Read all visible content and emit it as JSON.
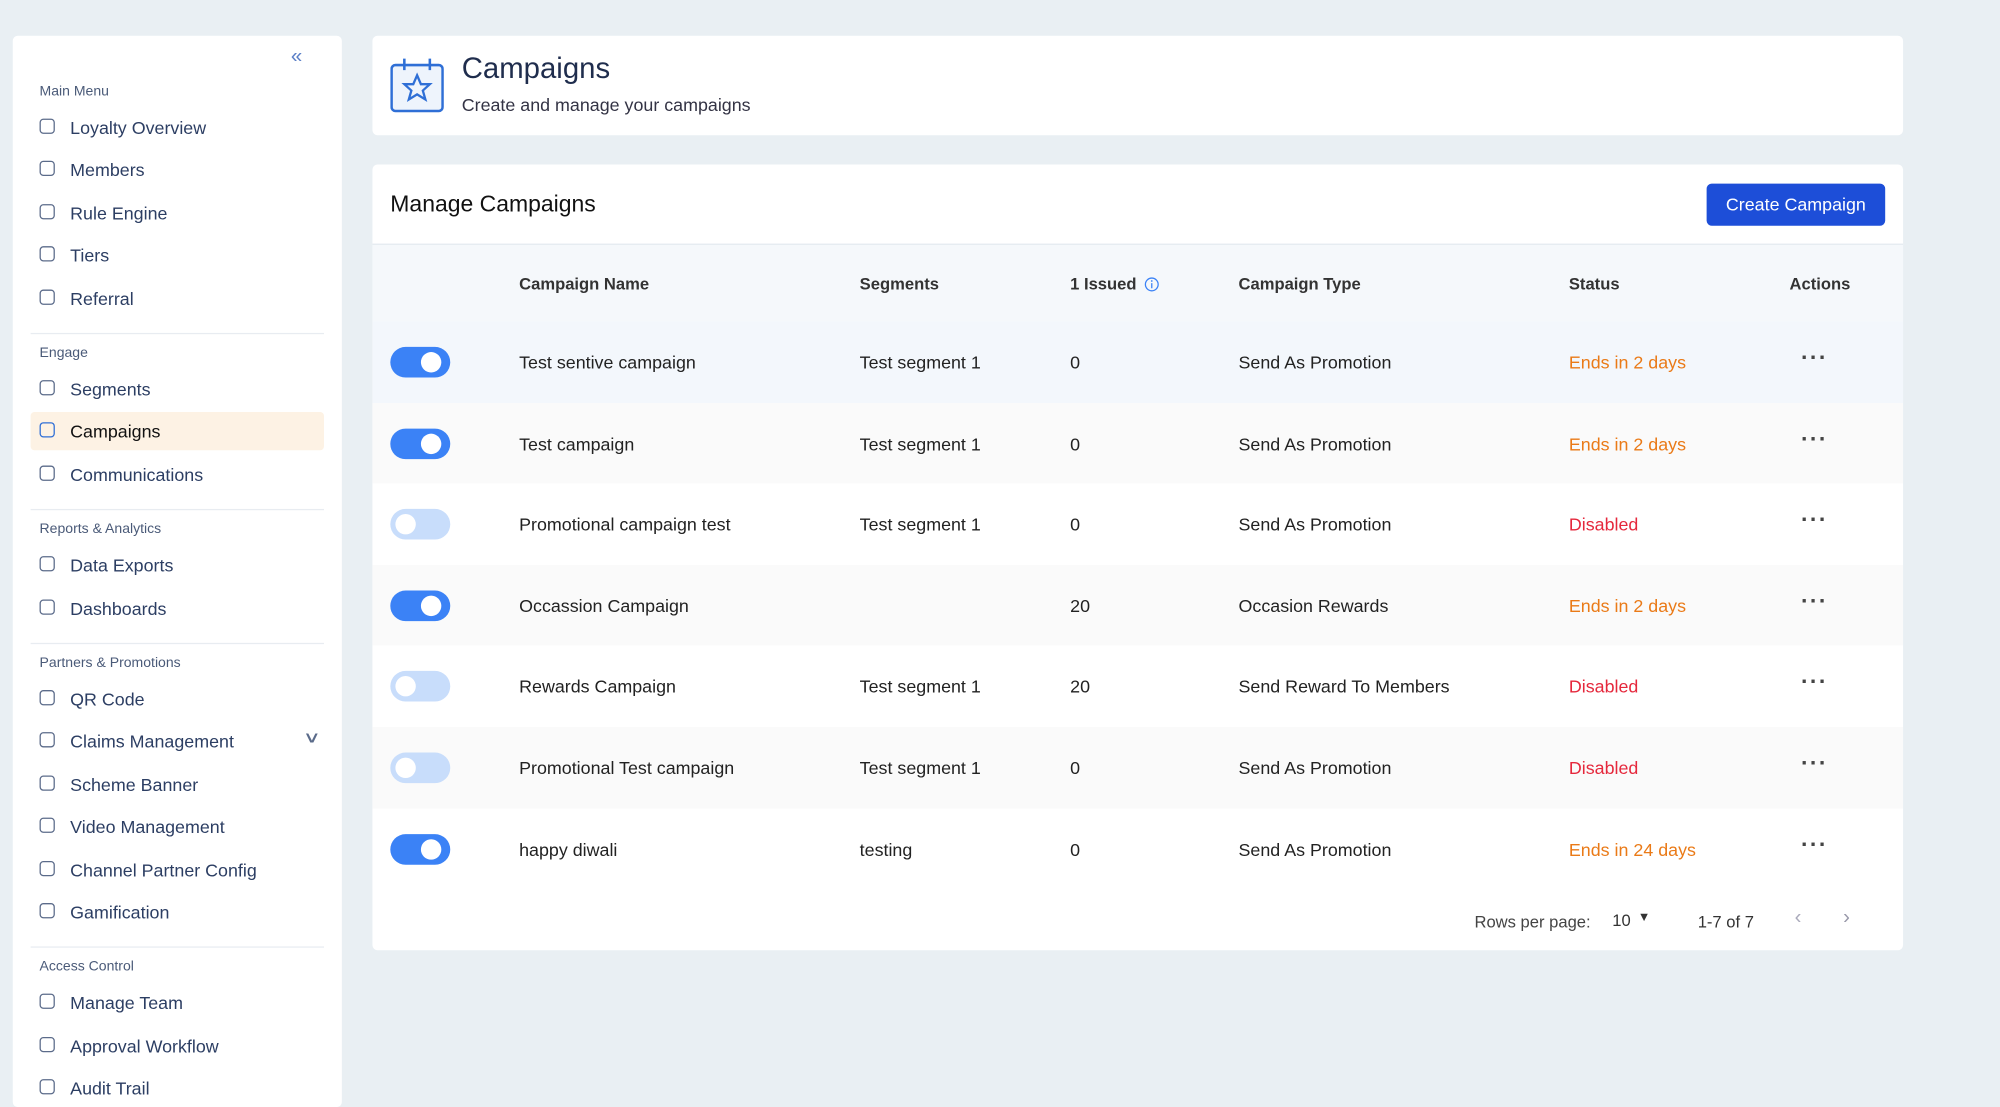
{
  "sidebar": {
    "sections": [
      {
        "title": "Main Menu",
        "items": [
          {
            "label": "Loyalty Overview"
          },
          {
            "label": "Members"
          },
          {
            "label": "Rule Engine"
          },
          {
            "label": "Tiers"
          },
          {
            "label": "Referral"
          }
        ]
      },
      {
        "title": "Engage",
        "items": [
          {
            "label": "Segments"
          },
          {
            "label": "Campaigns",
            "selected": true
          },
          {
            "label": "Communications"
          }
        ]
      },
      {
        "title": "Reports & Analytics",
        "items": [
          {
            "label": "Data Exports"
          },
          {
            "label": "Dashboards"
          }
        ]
      },
      {
        "title": "Partners & Promotions",
        "items": [
          {
            "label": "QR Code"
          },
          {
            "label": "Claims Management",
            "expandable": true
          },
          {
            "label": "Scheme Banner"
          },
          {
            "label": "Video Management"
          },
          {
            "label": "Channel Partner Config"
          },
          {
            "label": "Gamification"
          }
        ]
      },
      {
        "title": "Access Control",
        "items": [
          {
            "label": "Manage Team"
          },
          {
            "label": "Approval Workflow"
          },
          {
            "label": "Audit Trail"
          }
        ]
      }
    ]
  },
  "header": {
    "title": "Campaigns",
    "subtitle": "Create and manage your campaigns"
  },
  "panel": {
    "title": "Manage Campaigns",
    "button": "Create Campaign",
    "columns": [
      "Campaign Name",
      "Segments",
      "1 Issued",
      "Campaign Type",
      "Status",
      "Actions"
    ],
    "rows": [
      {
        "active": true,
        "name": "Test sentive campaign",
        "segment": "Test segment 1",
        "issued": 0,
        "type": "Send As Promotion",
        "status": "Ends in 2 days"
      },
      {
        "active": true,
        "name": "Test campaign",
        "segment": "Test segment 1",
        "issued": 0,
        "type": "Send As Promotion",
        "status": "Ends in 2 days"
      },
      {
        "active": false,
        "name": "Promotional campaign test",
        "segment": "Test segment 1",
        "issued": 0,
        "type": "Send As Promotion",
        "status": "Disabled"
      },
      {
        "active": true,
        "name": "Occassion Campaign",
        "segment": null,
        "issued": 20,
        "type": "Occasion Rewards",
        "status": "Ends in 2 days"
      },
      {
        "active": false,
        "name": "Rewards Campaign",
        "segment": "Test segment 1",
        "issued": 20,
        "type": "Send Reward To Members",
        "status": "Disabled"
      },
      {
        "active": false,
        "name": "Promotional Test campaign",
        "segment": "Test segment 1",
        "issued": 0,
        "type": "Send As Promotion",
        "status": "Disabled"
      },
      {
        "active": true,
        "name": "happy diwali",
        "segment": "testing",
        "issued": 0,
        "type": "Send As Promotion",
        "status": "Ends in 24 days"
      }
    ],
    "pagination": {
      "rows_per_page_label": "Rows per page:",
      "rows_per_page": 10,
      "range": "1-7 of 7"
    }
  }
}
